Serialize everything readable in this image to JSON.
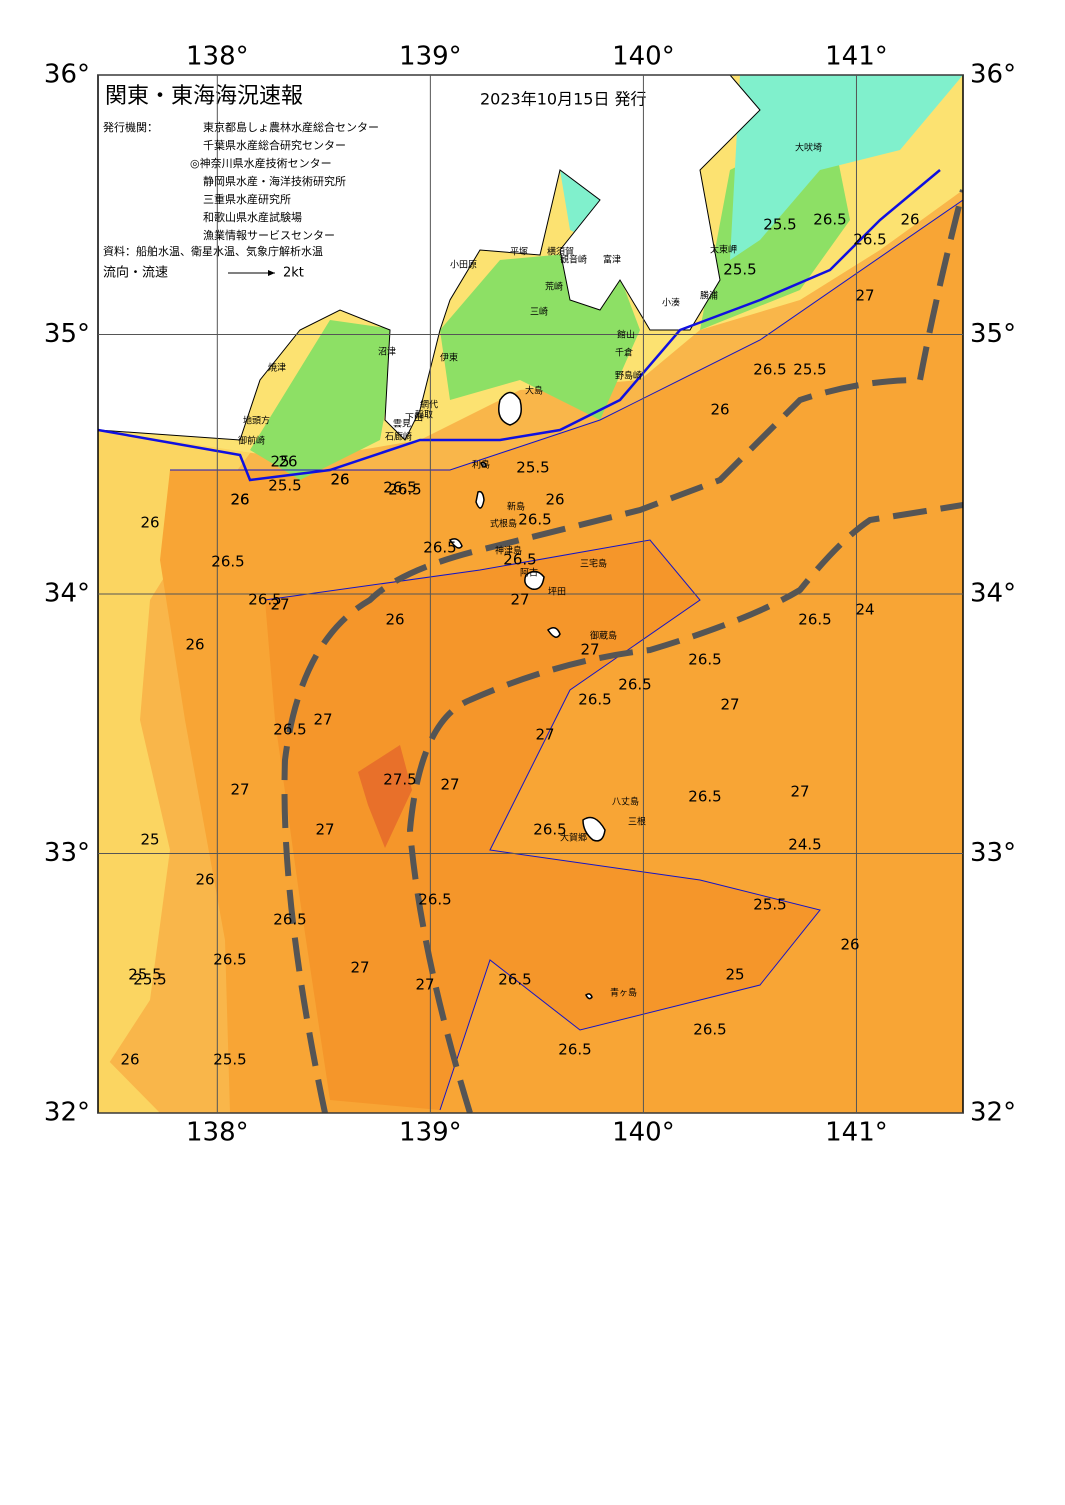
{
  "header": {
    "title": "関東・東海海況速報",
    "date": "2023年10月15日 発行",
    "issuer_label": "発行機関：",
    "issuers": [
      "東京都島しょ農林水産総合センター",
      "千葉県水産総合研究センター",
      "◎神奈川県水産技術センター",
      "静岡県水産・海洋技術研究所",
      "三重県水産研究所",
      "和歌山県水産試験場",
      "漁業情報サービスセンター"
    ],
    "sources": "資料：船舶水温、衛星水温、気象庁解析水温",
    "flow_label": "流向・流速",
    "flow_scale": "2kt"
  },
  "axes": {
    "lon_ticks": [
      {
        "value": 138,
        "label": "138°"
      },
      {
        "value": 139,
        "label": "139°"
      },
      {
        "value": 140,
        "label": "140°"
      },
      {
        "value": 141,
        "label": "141°"
      }
    ],
    "lat_ticks": [
      {
        "value": 36,
        "label": "36°"
      },
      {
        "value": 35,
        "label": "35°"
      },
      {
        "value": 34,
        "label": "34°"
      },
      {
        "value": 33,
        "label": "33°"
      },
      {
        "value": 32,
        "label": "32°"
      }
    ],
    "lon_range": [
      137.44,
      141.5
    ],
    "lat_range": [
      32,
      36
    ]
  },
  "places": [
    "大吠埼",
    "太東岬",
    "勝浦",
    "小湊",
    "館山",
    "千倉",
    "野島崎",
    "富津",
    "観音崎",
    "横須賀",
    "荒崎",
    "三崎",
    "平塚",
    "小田原",
    "伊東",
    "網代",
    "稲取",
    "下田",
    "雲見",
    "石廊崎",
    "沼津",
    "焼津",
    "地頭方",
    "御前崎",
    "大島",
    "利島",
    "新島",
    "式根島",
    "神津島",
    "三宅島",
    "阿古",
    "坪田",
    "御蔵島",
    "八丈島",
    "三根",
    "大賀郷",
    "青ヶ島"
  ],
  "contour_labels": [
    "26",
    "26",
    "26.5",
    "26",
    "25.5",
    "25",
    "26",
    "26.5",
    "25.5",
    "26",
    "26.5",
    "26.5",
    "25.5",
    "25",
    "25.5",
    "26",
    "26.5",
    "27",
    "26",
    "27",
    "26.5",
    "27",
    "27.5",
    "27",
    "27",
    "26.5",
    "26.5",
    "27",
    "27",
    "26.5",
    "27",
    "26.5",
    "26.5",
    "26.5",
    "27",
    "26.5",
    "26.5",
    "27",
    "26.5",
    "27",
    "26",
    "26",
    "25.5",
    "26.5",
    "26",
    "26",
    "26.5",
    "27",
    "26.5",
    "26.5",
    "26.5",
    "24",
    "24.5",
    "25",
    "25.5",
    "26",
    "25.5",
    "25.5",
    "26.5",
    "26.5",
    "26",
    "27",
    "26.5",
    "25.5",
    "26"
  ]
}
